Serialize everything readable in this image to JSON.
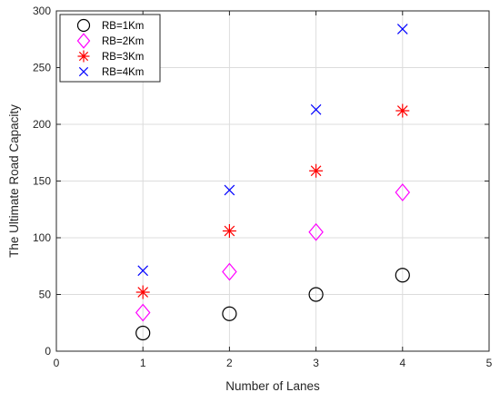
{
  "chart_data": {
    "type": "scatter",
    "title": "",
    "xlabel": "Number of Lanes",
    "ylabel": "The Ultimate Road Capacity",
    "xlim": [
      0,
      5
    ],
    "ylim": [
      0,
      300
    ],
    "xticks": [
      0,
      1,
      2,
      3,
      4,
      5
    ],
    "yticks": [
      0,
      50,
      100,
      150,
      200,
      250,
      300
    ],
    "xtick_labels": [
      "0",
      "1",
      "2",
      "3",
      "4",
      "5"
    ],
    "ytick_labels": [
      "0",
      "50",
      "100",
      "150",
      "200",
      "250",
      "300"
    ],
    "grid": true,
    "legend_position": "top-left",
    "x": [
      1,
      2,
      3,
      4
    ],
    "series": [
      {
        "name": "RB=1Km",
        "marker": "circle",
        "color": "#000000",
        "values": [
          16,
          33,
          50,
          67
        ]
      },
      {
        "name": "RB=2Km",
        "marker": "diamond",
        "color": "#ff00ff",
        "values": [
          34,
          70,
          105,
          140
        ]
      },
      {
        "name": "RB=3Km",
        "marker": "asterisk",
        "color": "#ff0000",
        "values": [
          52,
          106,
          159,
          212
        ]
      },
      {
        "name": "RB=4Km",
        "marker": "cross",
        "color": "#0000ff",
        "values": [
          71,
          142,
          213,
          284
        ]
      }
    ]
  }
}
